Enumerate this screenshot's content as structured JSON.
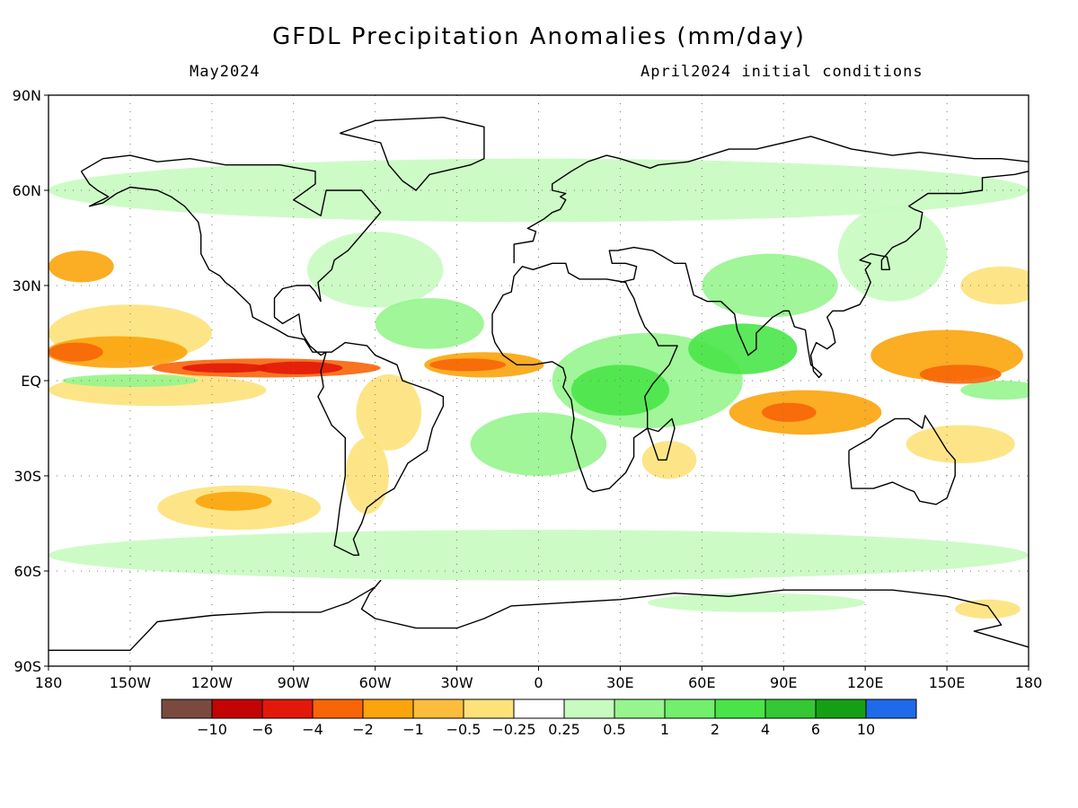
{
  "title": "GFDL Precipitation Anomalies (mm/day)",
  "subtitle_left": "May2024",
  "subtitle_right": "April2024 initial conditions",
  "lat_labels": [
    "90N",
    "60N",
    "30N",
    "EQ",
    "30S",
    "60S",
    "90S"
  ],
  "lon_labels": [
    "180",
    "150W",
    "120W",
    "90W",
    "60W",
    "30W",
    "0",
    "30E",
    "60E",
    "90E",
    "120E",
    "150E",
    "180"
  ],
  "colorbar": {
    "colors": [
      "#7a4a3e",
      "#c30404",
      "#e2180a",
      "#f76508",
      "#fba40b",
      "#fbbd3b",
      "#fde27a",
      "#ffffff",
      "#c8fbc0",
      "#96f58d",
      "#72ef6c",
      "#49e548",
      "#34c834",
      "#14a014",
      "#1e6ae8"
    ],
    "labels": [
      "−10",
      "−6",
      "−4",
      "−2",
      "−1",
      "−0.5",
      "−0.25",
      "0.25",
      "0.5",
      "1",
      "2",
      "4",
      "6",
      "10"
    ]
  },
  "anomaly_regions": [
    {
      "level": "red",
      "lon": -88,
      "lat": 4,
      "rlon": 16,
      "rlat": 2
    },
    {
      "level": "red",
      "lon": -115,
      "lat": 4,
      "rlon": 16,
      "rlat": 1.5
    },
    {
      "level": "dark-orange",
      "lon": -100,
      "lat": 4,
      "rlon": 42,
      "rlat": 3
    },
    {
      "level": "dark-orange",
      "lon": -170,
      "lat": 9,
      "rlon": 10,
      "rlat": 3
    },
    {
      "level": "orange",
      "lon": -155,
      "lat": 9,
      "rlon": 26,
      "rlat": 5
    },
    {
      "level": "light-orange",
      "lon": -150,
      "lat": 15,
      "rlon": 30,
      "rlat": 9
    },
    {
      "level": "light-orange",
      "lon": -140,
      "lat": -3,
      "rlon": 40,
      "rlat": 5
    },
    {
      "level": "orange",
      "lon": -168,
      "lat": 36,
      "rlon": 12,
      "rlat": 5
    },
    {
      "level": "light-orange",
      "lon": -110,
      "lat": -40,
      "rlon": 30,
      "rlat": 7
    },
    {
      "level": "orange",
      "lon": -112,
      "lat": -38,
      "rlon": 14,
      "rlat": 3
    },
    {
      "level": "light-orange",
      "lon": -55,
      "lat": -10,
      "rlon": 12,
      "rlat": 12
    },
    {
      "level": "light-orange",
      "lon": -63,
      "lat": -30,
      "rlon": 8,
      "rlat": 12
    },
    {
      "level": "dark-orange",
      "lon": -26,
      "lat": 5,
      "rlon": 14,
      "rlat": 2
    },
    {
      "level": "orange",
      "lon": -20,
      "lat": 5,
      "rlon": 22,
      "rlat": 4
    },
    {
      "level": "light-orange",
      "lon": 48,
      "lat": -25,
      "rlon": 10,
      "rlat": 6
    },
    {
      "level": "orange",
      "lon": 98,
      "lat": -10,
      "rlon": 28,
      "rlat": 7
    },
    {
      "level": "dark-orange",
      "lon": 92,
      "lat": -10,
      "rlon": 10,
      "rlat": 3
    },
    {
      "level": "orange",
      "lon": 150,
      "lat": 8,
      "rlon": 28,
      "rlat": 8
    },
    {
      "level": "dark-orange",
      "lon": 155,
      "lat": 2,
      "rlon": 15,
      "rlat": 3
    },
    {
      "level": "light-orange",
      "lon": 170,
      "lat": 30,
      "rlon": 15,
      "rlat": 6
    },
    {
      "level": "light-orange",
      "lon": 155,
      "lat": -20,
      "rlon": 20,
      "rlat": 6
    },
    {
      "level": "light-orange",
      "lon": 165,
      "lat": -72,
      "rlon": 12,
      "rlat": 3
    },
    {
      "level": "light-green",
      "lon": 40,
      "lat": 0,
      "rlon": 35,
      "rlat": 15
    },
    {
      "level": "green",
      "lon": 30,
      "lat": -3,
      "rlon": 18,
      "rlat": 8
    },
    {
      "level": "green",
      "lon": 75,
      "lat": 10,
      "rlon": 20,
      "rlat": 8
    },
    {
      "level": "light-green",
      "lon": 85,
      "lat": 30,
      "rlon": 25,
      "rlat": 10
    },
    {
      "level": "light-green",
      "lon": -150,
      "lat": 0,
      "rlon": 25,
      "rlat": 2
    },
    {
      "level": "light-green",
      "lon": 170,
      "lat": -3,
      "rlon": 15,
      "rlat": 3
    },
    {
      "level": "light-green",
      "lon": -40,
      "lat": 18,
      "rlon": 20,
      "rlat": 8
    },
    {
      "level": "light-green",
      "lon": 0,
      "lat": -20,
      "rlon": 25,
      "rlat": 10
    },
    {
      "level": "pale-green",
      "lon": 0,
      "lat": 60,
      "rlon": 180,
      "rlat": 10
    },
    {
      "level": "pale-green",
      "lon": 0,
      "lat": -55,
      "rlon": 180,
      "rlat": 8
    },
    {
      "level": "pale-green",
      "lon": 80,
      "lat": -70,
      "rlon": 40,
      "rlat": 3
    },
    {
      "level": "pale-green",
      "lon": -60,
      "lat": 35,
      "rlon": 25,
      "rlat": 12
    },
    {
      "level": "pale-green",
      "lon": 130,
      "lat": 40,
      "rlon": 20,
      "rlat": 15
    }
  ],
  "coastlines": [
    [
      [
        -168,
        66
      ],
      [
        -160,
        70
      ],
      [
        -150,
        71
      ],
      [
        -140,
        69
      ],
      [
        -128,
        70
      ],
      [
        -115,
        68
      ],
      [
        -95,
        68
      ],
      [
        -82,
        66
      ],
      [
        -82,
        62
      ],
      [
        -90,
        57
      ],
      [
        -80,
        52
      ],
      [
        -78,
        60
      ],
      [
        -65,
        60
      ],
      [
        -58,
        53
      ],
      [
        -66,
        45
      ],
      [
        -70,
        41
      ],
      [
        -75,
        38
      ],
      [
        -76,
        35
      ],
      [
        -81,
        31
      ],
      [
        -80,
        25
      ],
      [
        -82,
        28
      ],
      [
        -84,
        30
      ],
      [
        -89,
        30
      ],
      [
        -94,
        29
      ],
      [
        -97,
        26
      ],
      [
        -97,
        20
      ],
      [
        -94,
        18
      ],
      [
        -88,
        21
      ],
      [
        -87,
        15
      ],
      [
        -84,
        11
      ],
      [
        -80,
        8
      ],
      [
        -78,
        9
      ],
      [
        -80,
        3
      ],
      [
        -79,
        -2
      ],
      [
        -81,
        -5
      ],
      [
        -76,
        -14
      ],
      [
        -71,
        -18
      ],
      [
        -71,
        -30
      ],
      [
        -73,
        -40
      ],
      [
        -74,
        -47
      ],
      [
        -75,
        -52
      ],
      [
        -68,
        -55
      ],
      [
        -66,
        -55
      ],
      [
        -68,
        -50
      ],
      [
        -65,
        -45
      ],
      [
        -63,
        -40
      ],
      [
        -57,
        -36
      ],
      [
        -53,
        -34
      ],
      [
        -48,
        -26
      ],
      [
        -41,
        -22
      ],
      [
        -39,
        -15
      ],
      [
        -35,
        -8
      ],
      [
        -35,
        -5
      ],
      [
        -40,
        -3
      ],
      [
        -50,
        0
      ],
      [
        -52,
        5
      ],
      [
        -60,
        8
      ],
      [
        -63,
        11
      ],
      [
        -71,
        12
      ],
      [
        -76,
        9
      ],
      [
        -78,
        9
      ],
      [
        -83,
        9
      ],
      [
        -86,
        13
      ],
      [
        -92,
        14
      ],
      [
        -96,
        16
      ],
      [
        -105,
        20
      ],
      [
        -106,
        24
      ],
      [
        -112,
        29
      ],
      [
        -115,
        31
      ],
      [
        -117,
        33
      ],
      [
        -121,
        35
      ],
      [
        -124,
        40
      ],
      [
        -124,
        46
      ],
      [
        -125,
        50
      ],
      [
        -130,
        55
      ],
      [
        -135,
        58
      ],
      [
        -140,
        60
      ],
      [
        -150,
        61
      ],
      [
        -155,
        59
      ],
      [
        -160,
        56
      ],
      [
        -165,
        55
      ],
      [
        -158,
        58
      ],
      [
        -162,
        60
      ],
      [
        -165,
        62
      ],
      [
        -168,
        66
      ]
    ],
    [
      [
        -73,
        78
      ],
      [
        -60,
        82
      ],
      [
        -35,
        83
      ],
      [
        -20,
        80
      ],
      [
        -20,
        70
      ],
      [
        -25,
        68
      ],
      [
        -40,
        65
      ],
      [
        -45,
        60
      ],
      [
        -50,
        63
      ],
      [
        -55,
        68
      ],
      [
        -58,
        75
      ],
      [
        -68,
        77
      ],
      [
        -73,
        78
      ]
    ],
    [
      [
        -17,
        21
      ],
      [
        -17,
        15
      ],
      [
        -16,
        12
      ],
      [
        -13,
        8
      ],
      [
        -8,
        5
      ],
      [
        -2,
        5
      ],
      [
        5,
        6
      ],
      [
        9,
        4
      ],
      [
        10,
        1
      ],
      [
        9,
        -2
      ],
      [
        12,
        -6
      ],
      [
        13,
        -12
      ],
      [
        12,
        -18
      ],
      [
        15,
        -27
      ],
      [
        18,
        -34
      ],
      [
        20,
        -35
      ],
      [
        26,
        -34
      ],
      [
        32,
        -29
      ],
      [
        35,
        -24
      ],
      [
        35,
        -18
      ],
      [
        40,
        -15
      ],
      [
        40,
        -10
      ],
      [
        39,
        -5
      ],
      [
        42,
        -1
      ],
      [
        48,
        5
      ],
      [
        51,
        11
      ],
      [
        44,
        11
      ],
      [
        43,
        13
      ],
      [
        39,
        17
      ],
      [
        37,
        21
      ],
      [
        35,
        26
      ],
      [
        33,
        29
      ],
      [
        32,
        31
      ],
      [
        25,
        32
      ],
      [
        20,
        32
      ],
      [
        15,
        32
      ],
      [
        11,
        34
      ],
      [
        10,
        37
      ],
      [
        5,
        37
      ],
      [
        -2,
        35
      ],
      [
        -6,
        36
      ],
      [
        -9,
        33
      ],
      [
        -10,
        28
      ],
      [
        -13,
        27
      ],
      [
        -17,
        21
      ]
    ],
    [
      [
        -9,
        37
      ],
      [
        -9,
        43
      ],
      [
        -2,
        44
      ],
      [
        -1,
        47
      ],
      [
        -4,
        48
      ],
      [
        2,
        51
      ],
      [
        5,
        53
      ],
      [
        8,
        54
      ],
      [
        10,
        57
      ],
      [
        8,
        58
      ],
      [
        10,
        59
      ],
      [
        5,
        60
      ],
      [
        5,
        62
      ],
      [
        12,
        66
      ],
      [
        18,
        69
      ],
      [
        25,
        71
      ],
      [
        30,
        70
      ],
      [
        41,
        67
      ],
      [
        44,
        68
      ],
      [
        55,
        69
      ],
      [
        70,
        73
      ],
      [
        80,
        73
      ],
      [
        100,
        77
      ],
      [
        115,
        73
      ],
      [
        130,
        71
      ],
      [
        140,
        72
      ],
      [
        150,
        71
      ],
      [
        160,
        70
      ],
      [
        170,
        70
      ],
      [
        180,
        69
      ]
    ],
    [
      [
        40,
        -15
      ],
      [
        44,
        -25
      ],
      [
        47,
        -25
      ],
      [
        50,
        -15
      ],
      [
        49,
        -12
      ],
      [
        44,
        -16
      ],
      [
        40,
        -15
      ]
    ],
    [
      [
        114,
        -22
      ],
      [
        114,
        -26
      ],
      [
        115,
        -34
      ],
      [
        123,
        -34
      ],
      [
        130,
        -32
      ],
      [
        135,
        -34
      ],
      [
        138,
        -35
      ],
      [
        140,
        -38
      ],
      [
        146,
        -39
      ],
      [
        150,
        -37
      ],
      [
        153,
        -30
      ],
      [
        153,
        -25
      ],
      [
        150,
        -22
      ],
      [
        145,
        -15
      ],
      [
        142,
        -11
      ],
      [
        141,
        -15
      ],
      [
        136,
        -12
      ],
      [
        131,
        -12
      ],
      [
        125,
        -15
      ],
      [
        122,
        -18
      ],
      [
        114,
        -22
      ]
    ],
    [
      [
        30,
        31
      ],
      [
        35,
        32
      ],
      [
        36,
        36
      ],
      [
        32,
        37
      ],
      [
        27,
        37
      ],
      [
        26,
        41
      ],
      [
        29,
        41
      ],
      [
        35,
        42
      ],
      [
        42,
        41
      ],
      [
        50,
        37
      ],
      [
        54,
        37
      ],
      [
        57,
        27
      ],
      [
        62,
        25
      ],
      [
        67,
        25
      ],
      [
        72,
        21
      ],
      [
        73,
        16
      ],
      [
        77,
        8
      ],
      [
        80,
        10
      ],
      [
        80,
        15
      ],
      [
        86,
        20
      ],
      [
        90,
        22
      ],
      [
        92,
        22
      ],
      [
        94,
        17
      ],
      [
        98,
        16
      ],
      [
        99,
        10
      ],
      [
        100,
        5
      ],
      [
        104,
        2
      ],
      [
        103,
        1
      ],
      [
        101,
        3
      ],
      [
        100,
        8
      ],
      [
        102,
        12
      ],
      [
        106,
        10
      ],
      [
        109,
        12
      ],
      [
        108,
        16
      ],
      [
        106,
        20
      ],
      [
        108,
        22
      ],
      [
        112,
        22
      ],
      [
        118,
        24
      ],
      [
        120,
        27
      ],
      [
        122,
        31
      ],
      [
        120,
        35
      ],
      [
        122,
        37
      ],
      [
        118,
        38
      ],
      [
        122,
        40
      ],
      [
        128,
        39
      ],
      [
        129,
        35
      ],
      [
        126,
        35
      ],
      [
        126,
        38
      ],
      [
        130,
        42
      ],
      [
        135,
        44
      ],
      [
        140,
        48
      ],
      [
        141,
        53
      ],
      [
        138,
        54
      ],
      [
        136,
        55
      ],
      [
        143,
        59
      ],
      [
        150,
        59
      ],
      [
        155,
        59
      ],
      [
        163,
        60
      ],
      [
        163,
        64
      ],
      [
        175,
        65
      ],
      [
        180,
        66
      ]
    ],
    [
      [
        -180,
        -85
      ],
      [
        -150,
        -85
      ],
      [
        -140,
        -76
      ],
      [
        -120,
        -74
      ],
      [
        -100,
        -73
      ],
      [
        -80,
        -73
      ],
      [
        -70,
        -70
      ],
      [
        -60,
        -65
      ],
      [
        -58,
        -63
      ],
      [
        -62,
        -67
      ],
      [
        -65,
        -72
      ],
      [
        -60,
        -75
      ],
      [
        -45,
        -78
      ],
      [
        -30,
        -78
      ],
      [
        -20,
        -75
      ],
      [
        -10,
        -71
      ],
      [
        10,
        -70
      ],
      [
        30,
        -69
      ],
      [
        50,
        -67
      ],
      [
        70,
        -68
      ],
      [
        90,
        -66
      ],
      [
        110,
        -66
      ],
      [
        130,
        -66
      ],
      [
        150,
        -68
      ],
      [
        165,
        -71
      ],
      [
        170,
        -77
      ],
      [
        160,
        -79
      ],
      [
        180,
        -84
      ]
    ]
  ]
}
